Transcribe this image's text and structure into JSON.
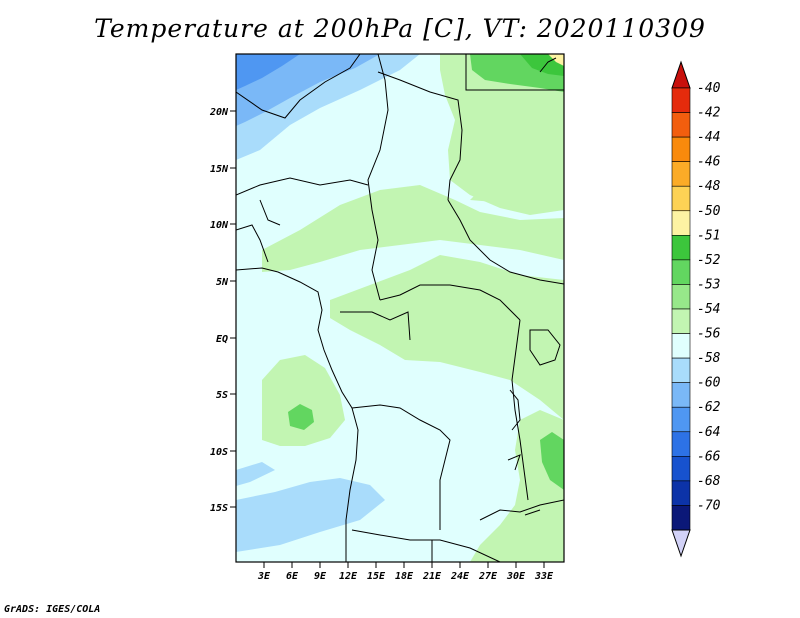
{
  "title": "Temperature at 200hPa [C], VT: 2020110309",
  "credit": "GrADS: IGES/COLA",
  "map": {
    "lat_labels": [
      "20N",
      "15N",
      "10N",
      "5N",
      "EQ",
      "5S",
      "10S",
      "15S"
    ],
    "lon_labels": [
      "3E",
      "6E",
      "9E",
      "12E",
      "15E",
      "18E",
      "21E",
      "24E",
      "27E",
      "30E",
      "33E"
    ]
  },
  "colorbar": {
    "labels": [
      "-40",
      "-42",
      "-44",
      "-46",
      "-48",
      "-50",
      "-51",
      "-52",
      "-53",
      "-54",
      "-56",
      "-58",
      "-60",
      "-62",
      "-64",
      "-66",
      "-68",
      "-70"
    ],
    "colors": [
      "#e52b0c",
      "#f25e0e",
      "#f98a0c",
      "#fbab27",
      "#fdd255",
      "#fdf3a3",
      "#3cc63c",
      "#62d660",
      "#97e88a",
      "#c2f5b2",
      "#e0fffe",
      "#a9dcfb",
      "#7ab8f7",
      "#4f97f2",
      "#2d72e6",
      "#1752ce",
      "#0c33a8",
      "#0b1878"
    ],
    "cap_top_color": "#c8100c",
    "cap_bottom_color": "#d2d2f7"
  }
}
